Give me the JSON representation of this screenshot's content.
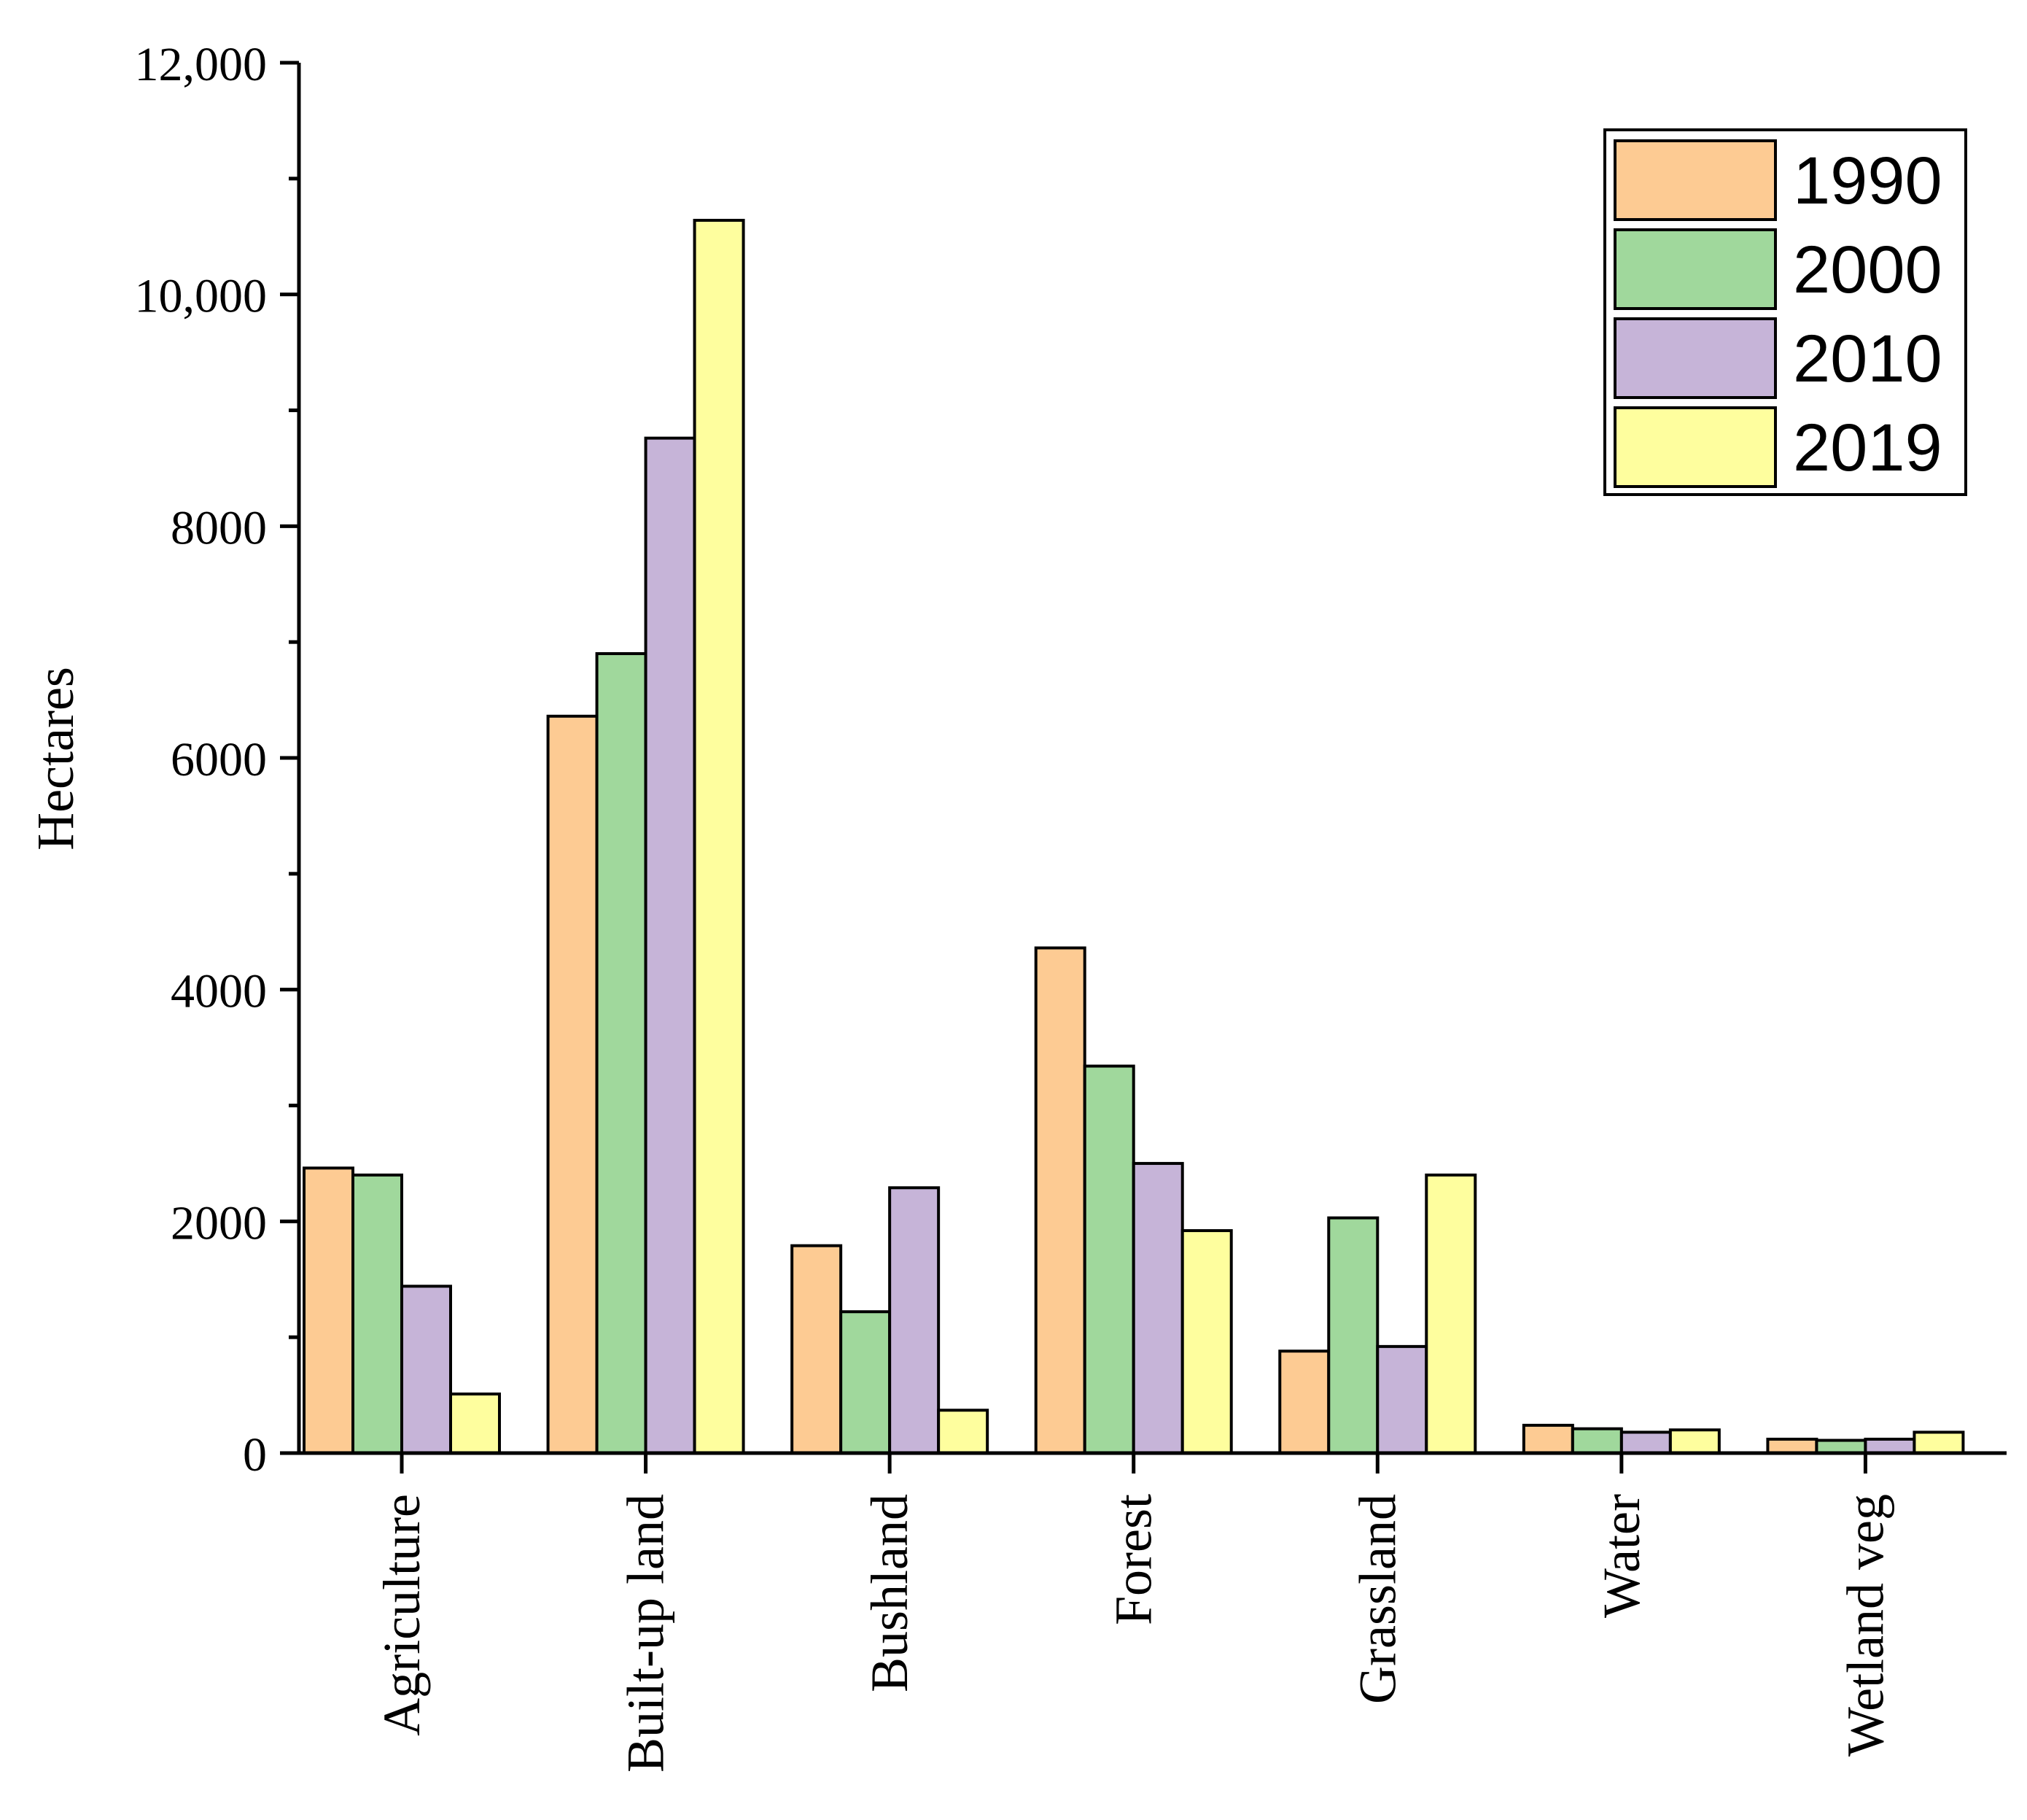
{
  "chart_data": {
    "type": "bar",
    "title": "",
    "xlabel": "",
    "ylabel": "Hectares",
    "ylim": [
      0,
      12000
    ],
    "yticks": [
      {
        "value": 0,
        "label": "0"
      },
      {
        "value": 2000,
        "label": "2000"
      },
      {
        "value": 4000,
        "label": "4000"
      },
      {
        "value": 6000,
        "label": "6000"
      },
      {
        "value": 8000,
        "label": "8000"
      },
      {
        "value": 10000,
        "label": "10,000"
      },
      {
        "value": 12000,
        "label": "12,000"
      }
    ],
    "categories": [
      "Agriculture",
      "Built-up land",
      "Bushland",
      "Forest",
      "Grassland",
      "Water",
      "Wetland veg"
    ],
    "series": [
      {
        "name": "1990",
        "color": "#FDCB93",
        "values": [
          2460,
          6360,
          1790,
          4360,
          880,
          240,
          120
        ]
      },
      {
        "name": "2000",
        "color": "#A0D89C",
        "values": [
          2400,
          6900,
          1220,
          3340,
          2030,
          210,
          110
        ]
      },
      {
        "name": "2010",
        "color": "#C6B4D8",
        "values": [
          1440,
          8760,
          2290,
          2500,
          920,
          180,
          120
        ]
      },
      {
        "name": "2019",
        "color": "#FEFE9E",
        "values": [
          510,
          10640,
          370,
          1920,
          2400,
          200,
          180
        ]
      }
    ],
    "legend": "top-right",
    "grid": false
  }
}
